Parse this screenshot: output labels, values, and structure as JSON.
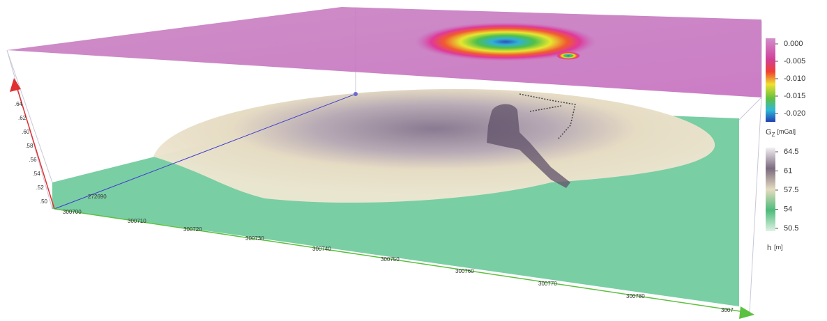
{
  "scene": {
    "z_axis": {
      "ticks": [
        ".64",
        ".62",
        ".60",
        ".58",
        ".56",
        ".54",
        ".52",
        ".50"
      ]
    },
    "y_axis": {
      "ticks": [
        "272690"
      ]
    },
    "x_axis": {
      "ticks": [
        "300700",
        "300710",
        "300720",
        "300730",
        "300740",
        "300750",
        "300760",
        "300770",
        "300780",
        "3007"
      ]
    }
  },
  "colorbars": [
    {
      "ticks": [
        "0.000",
        "-0.005",
        "-0.010",
        "-0.015",
        "-0.020"
      ],
      "label_main": "G",
      "label_sub": "Z",
      "label_unit": "[mGal]"
    },
    {
      "ticks": [
        "64.5",
        "61",
        "57.5",
        "54",
        "50.5"
      ],
      "label_main": "h",
      "label_unit": "[m]"
    }
  ]
}
